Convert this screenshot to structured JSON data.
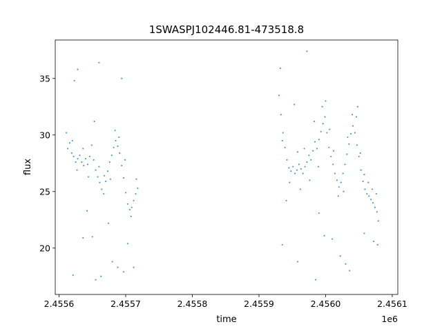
{
  "chart_data": {
    "type": "scatter",
    "title": "1SWASPJ102446.81-473518.8",
    "xlabel": "time",
    "ylabel": "flux",
    "x_offset_label": "1e6",
    "xlim": [
      2455594.3,
      2456108.3
    ],
    "ylim": [
      15.9,
      38.4
    ],
    "x_ticks": [
      2455600,
      2455700,
      2455800,
      2455900,
      2456000,
      2456100
    ],
    "x_tick_labels": [
      "2.4556",
      "2.4557",
      "2.4558",
      "2.4559",
      "2.4560",
      "2.4561"
    ],
    "y_ticks": [
      20,
      25,
      30,
      35
    ],
    "y_tick_labels": [
      "20",
      "25",
      "30",
      "35"
    ],
    "grid": false,
    "marker_color": "#1f77b4",
    "series": [
      {
        "values_xy": [
          [
            2455613,
            28.8
          ],
          [
            2455616,
            29.3
          ],
          [
            2455619,
            28.4
          ],
          [
            2455622,
            28.1
          ],
          [
            2455625,
            27.6
          ],
          [
            2455628,
            27.9
          ],
          [
            2455631,
            28.2
          ],
          [
            2455634,
            27.6
          ],
          [
            2455637,
            27.3
          ],
          [
            2455640,
            27.9
          ],
          [
            2455643,
            27.4
          ],
          [
            2455646,
            28.1
          ],
          [
            2455649,
            29.1
          ],
          [
            2455652,
            27.8
          ],
          [
            2455655,
            26.9
          ],
          [
            2455658,
            26.3
          ],
          [
            2455661,
            25.8
          ],
          [
            2455664,
            25.2
          ],
          [
            2455667,
            24.8
          ],
          [
            2455670,
            25.9
          ],
          [
            2455673,
            26.8
          ],
          [
            2455676,
            27.6
          ],
          [
            2455679,
            28.2
          ],
          [
            2455682,
            28.9
          ],
          [
            2455685,
            29.5
          ],
          [
            2455688,
            29.0
          ],
          [
            2455691,
            28.4
          ],
          [
            2455694,
            27.3
          ],
          [
            2455697,
            26.2
          ],
          [
            2455700,
            24.9
          ],
          [
            2455703,
            23.9
          ],
          [
            2455706,
            23.4
          ],
          [
            2455709,
            23.6
          ],
          [
            2455712,
            24.2
          ],
          [
            2455715,
            24.8
          ],
          [
            2455718,
            25.3
          ],
          [
            2455930,
            33.5
          ],
          [
            2455933,
            31.8
          ],
          [
            2455936,
            30.2
          ],
          [
            2455939,
            28.9
          ],
          [
            2455942,
            27.8
          ],
          [
            2455945,
            27.1
          ],
          [
            2455948,
            26.8
          ],
          [
            2455951,
            27.2
          ],
          [
            2455954,
            26.6
          ],
          [
            2455957,
            26.9
          ],
          [
            2455960,
            27.4
          ],
          [
            2455963,
            27.0
          ],
          [
            2455966,
            26.6
          ],
          [
            2455969,
            27.2
          ],
          [
            2455972,
            27.6
          ],
          [
            2455975,
            28.2
          ],
          [
            2455978,
            27.8
          ],
          [
            2455981,
            28.6
          ],
          [
            2455984,
            29.4
          ],
          [
            2455987,
            28.8
          ],
          [
            2455990,
            29.6
          ],
          [
            2455993,
            30.3
          ],
          [
            2455996,
            31.0
          ],
          [
            2455999,
            31.6
          ],
          [
            2456002,
            30.2
          ],
          [
            2456005,
            28.9
          ],
          [
            2456008,
            28.1
          ],
          [
            2456011,
            27.4
          ],
          [
            2456014,
            26.6
          ],
          [
            2456017,
            26.0
          ],
          [
            2456020,
            25.4
          ],
          [
            2456023,
            25.8
          ],
          [
            2456026,
            26.6
          ],
          [
            2456029,
            27.4
          ],
          [
            2456032,
            28.3
          ],
          [
            2456035,
            29.2
          ],
          [
            2456038,
            30.1
          ],
          [
            2456041,
            30.8
          ],
          [
            2456044,
            30.2
          ],
          [
            2456047,
            29.1
          ],
          [
            2456050,
            28.1
          ],
          [
            2456053,
            26.9
          ],
          [
            2456056,
            25.9
          ],
          [
            2456059,
            25.2
          ],
          [
            2456062,
            24.8
          ],
          [
            2456065,
            24.6
          ],
          [
            2456068,
            24.3
          ],
          [
            2456071,
            24.0
          ],
          [
            2456074,
            23.6
          ],
          [
            2456077,
            23.2
          ],
          [
            2455611,
            30.2
          ],
          [
            2455620,
            29.5
          ],
          [
            2455627,
            26.9
          ],
          [
            2455636,
            28.8
          ],
          [
            2455644,
            26.3
          ],
          [
            2455653,
            31.2
          ],
          [
            2455660,
            27.2
          ],
          [
            2455668,
            26.4
          ],
          [
            2455677,
            26.1
          ],
          [
            2455684,
            30.4
          ],
          [
            2455690,
            29.8
          ],
          [
            2455699,
            27.8
          ],
          [
            2455708,
            22.8
          ],
          [
            2455716,
            26.1
          ],
          [
            2455628,
            35.8
          ],
          [
            2455660,
            36.4
          ],
          [
            2455694,
            35.0
          ],
          [
            2455703,
            20.4
          ],
          [
            2455636,
            20.9
          ],
          [
            2455650,
            21.0
          ],
          [
            2455680,
            18.8
          ],
          [
            2455688,
            18.3
          ],
          [
            2455697,
            17.9
          ],
          [
            2455621,
            17.6
          ],
          [
            2455655,
            17.2
          ],
          [
            2455663,
            17.5
          ],
          [
            2455712,
            18.3
          ],
          [
            2455674,
            22.2
          ],
          [
            2455642,
            23.3
          ],
          [
            2455623,
            34.8
          ],
          [
            2455932,
            35.9
          ],
          [
            2455935,
            29.5
          ],
          [
            2455941,
            24.2
          ],
          [
            2455946,
            25.8
          ],
          [
            2455958,
            28.5
          ],
          [
            2455962,
            25.2
          ],
          [
            2455968,
            28.8
          ],
          [
            2455976,
            26.0
          ],
          [
            2455983,
            31.2
          ],
          [
            2455989,
            27.2
          ],
          [
            2455995,
            32.5
          ],
          [
            2456000,
            33.0
          ],
          [
            2456006,
            30.5
          ],
          [
            2456012,
            28.6
          ],
          [
            2456019,
            24.6
          ],
          [
            2456027,
            25.0
          ],
          [
            2456033,
            29.8
          ],
          [
            2456040,
            31.8
          ],
          [
            2456046,
            31.6
          ],
          [
            2456052,
            28.4
          ],
          [
            2456058,
            26.5
          ],
          [
            2456064,
            25.8
          ],
          [
            2456070,
            25.2
          ],
          [
            2456076,
            24.8
          ],
          [
            2456079,
            22.4
          ],
          [
            2455935,
            20.3
          ],
          [
            2455953,
            32.7
          ],
          [
            2455972,
            37.4
          ],
          [
            2455985,
            17.2
          ],
          [
            2455998,
            21.1
          ],
          [
            2456010,
            20.8
          ],
          [
            2456022,
            19.3
          ],
          [
            2456030,
            18.6
          ],
          [
            2456036,
            18.0
          ],
          [
            2456048,
            32.5
          ],
          [
            2456058,
            21.3
          ],
          [
            2456072,
            20.6
          ],
          [
            2456078,
            20.3
          ],
          [
            2455958,
            18.8
          ],
          [
            2455990,
            23.1
          ]
        ]
      }
    ]
  }
}
